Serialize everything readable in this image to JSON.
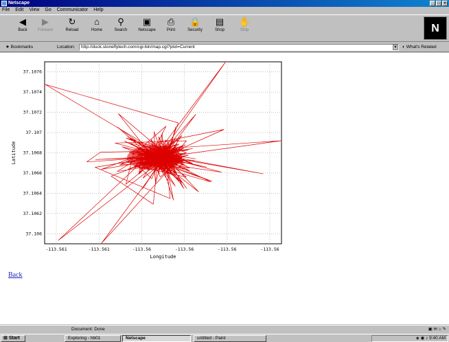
{
  "window": {
    "title": "Netscape"
  },
  "menu": [
    "File",
    "Edit",
    "View",
    "Go",
    "Communicator",
    "Help"
  ],
  "toolbar": [
    {
      "label": "Back",
      "icon": "back-arrow-icon",
      "glyph": "◀",
      "enabled": true
    },
    {
      "label": "Forward",
      "icon": "forward-arrow-icon",
      "glyph": "▶",
      "enabled": false
    },
    {
      "label": "Reload",
      "icon": "reload-icon",
      "glyph": "↻",
      "enabled": true
    },
    {
      "label": "Home",
      "icon": "home-icon",
      "glyph": "⌂",
      "enabled": true
    },
    {
      "label": "Search",
      "icon": "search-icon",
      "glyph": "⚲",
      "enabled": true
    },
    {
      "label": "Netscape",
      "icon": "netscape-icon",
      "glyph": "▣",
      "enabled": true
    },
    {
      "label": "Print",
      "icon": "print-icon",
      "glyph": "⎙",
      "enabled": true
    },
    {
      "label": "Security",
      "icon": "lock-icon",
      "glyph": "🔒",
      "enabled": true
    },
    {
      "label": "Shop",
      "icon": "shop-icon",
      "glyph": "▤",
      "enabled": true
    },
    {
      "label": "Stop",
      "icon": "stop-icon",
      "glyph": "✋",
      "enabled": false
    }
  ],
  "location": {
    "bookmarks_label": "Bookmarks",
    "location_label": "Location:",
    "url": "http://duck.stoneflytech.com/cgi-bin/map.cgi?plot=Current",
    "related_label": "What's Related"
  },
  "back_link": "Back",
  "status": {
    "text": "Document: Done"
  },
  "taskbar": {
    "start_label": "Start",
    "tasks": [
      {
        "label": "Exploring - hb01",
        "active": false
      },
      {
        "label": "Netscape",
        "active": true
      },
      {
        "label": "untitled - Paint",
        "active": false
      }
    ],
    "clock": "9:40 AM"
  },
  "chart_data": {
    "type": "line",
    "title": "",
    "xlabel": "Longitude",
    "ylabel": "Latitude",
    "x_ticks": [
      "-113.561",
      "-113.561",
      "-113.56",
      "-113.56",
      "-113.56",
      "-113.56"
    ],
    "y_ticks": [
      "37.106",
      "37.1062",
      "37.1064",
      "37.1066",
      "37.1068",
      "37.107",
      "37.1072",
      "37.1074",
      "37.1076"
    ],
    "ylim": [
      37.1059,
      37.1077
    ],
    "grid": true,
    "series_color": "#dd0000",
    "series": [
      {
        "name": "",
        "note": "dense red track centred near lat 37.10675",
        "y_center": 37.10675,
        "y_spread": 0.0008
      }
    ]
  }
}
